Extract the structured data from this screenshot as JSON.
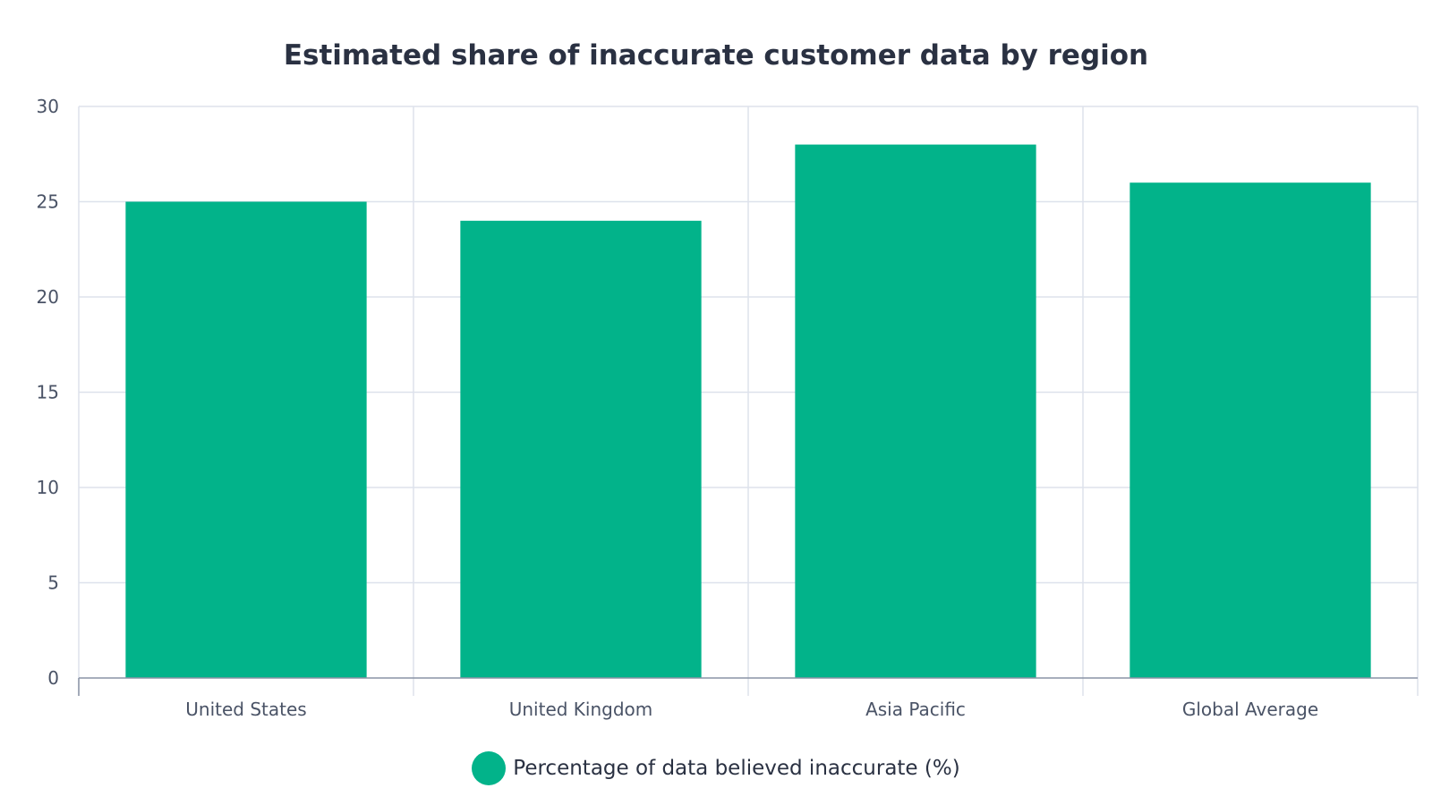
{
  "chart_data": {
    "type": "bar",
    "title": "Estimated share of inaccurate customer data by region",
    "categories": [
      "United States",
      "United Kingdom",
      "Asia Pacific",
      "Global Average"
    ],
    "series": [
      {
        "name": "Percentage of data believed inaccurate (%)",
        "values": [
          25,
          24,
          28,
          26
        ],
        "color": "#02b38a"
      }
    ],
    "xlabel": "",
    "ylabel": "",
    "ylim": [
      0,
      30
    ],
    "yticks": [
      0,
      5,
      10,
      15,
      20,
      25,
      30
    ],
    "grid": true,
    "legend_position": "bottom-center"
  },
  "colors": {
    "bar": "#02b38a",
    "grid": "#dde2ec",
    "axis": "#8a93a5",
    "text": "#2a3142"
  }
}
